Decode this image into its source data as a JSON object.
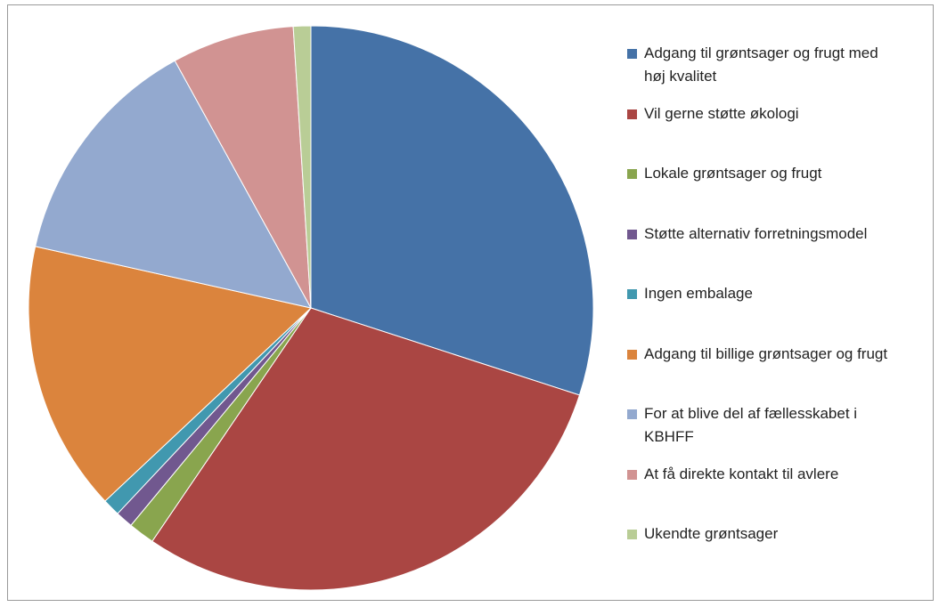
{
  "chart_data": {
    "type": "pie",
    "categories": [
      "Adgang til grøntsager og frugt med høj kvalitet",
      "Vil gerne støtte økologi",
      "Lokale grøntsager og frugt",
      "Støtte alternativ forretningsmodel",
      "Ingen embalage",
      "Adgang til billige grøntsager og frugt",
      "For at blive del af fællesskabet i KBHFF",
      "At få direkte kontakt til avlere",
      "Ukendte grøntsager"
    ],
    "values": [
      30,
      29.5,
      1.5,
      1,
      1,
      15.5,
      13.5,
      7,
      1
    ],
    "colors": [
      "#4572a7",
      "#aa4643",
      "#89a54e",
      "#71588f",
      "#4198af",
      "#db843d",
      "#93a9cf",
      "#d19392",
      "#b9cd96"
    ],
    "legend": "right"
  }
}
